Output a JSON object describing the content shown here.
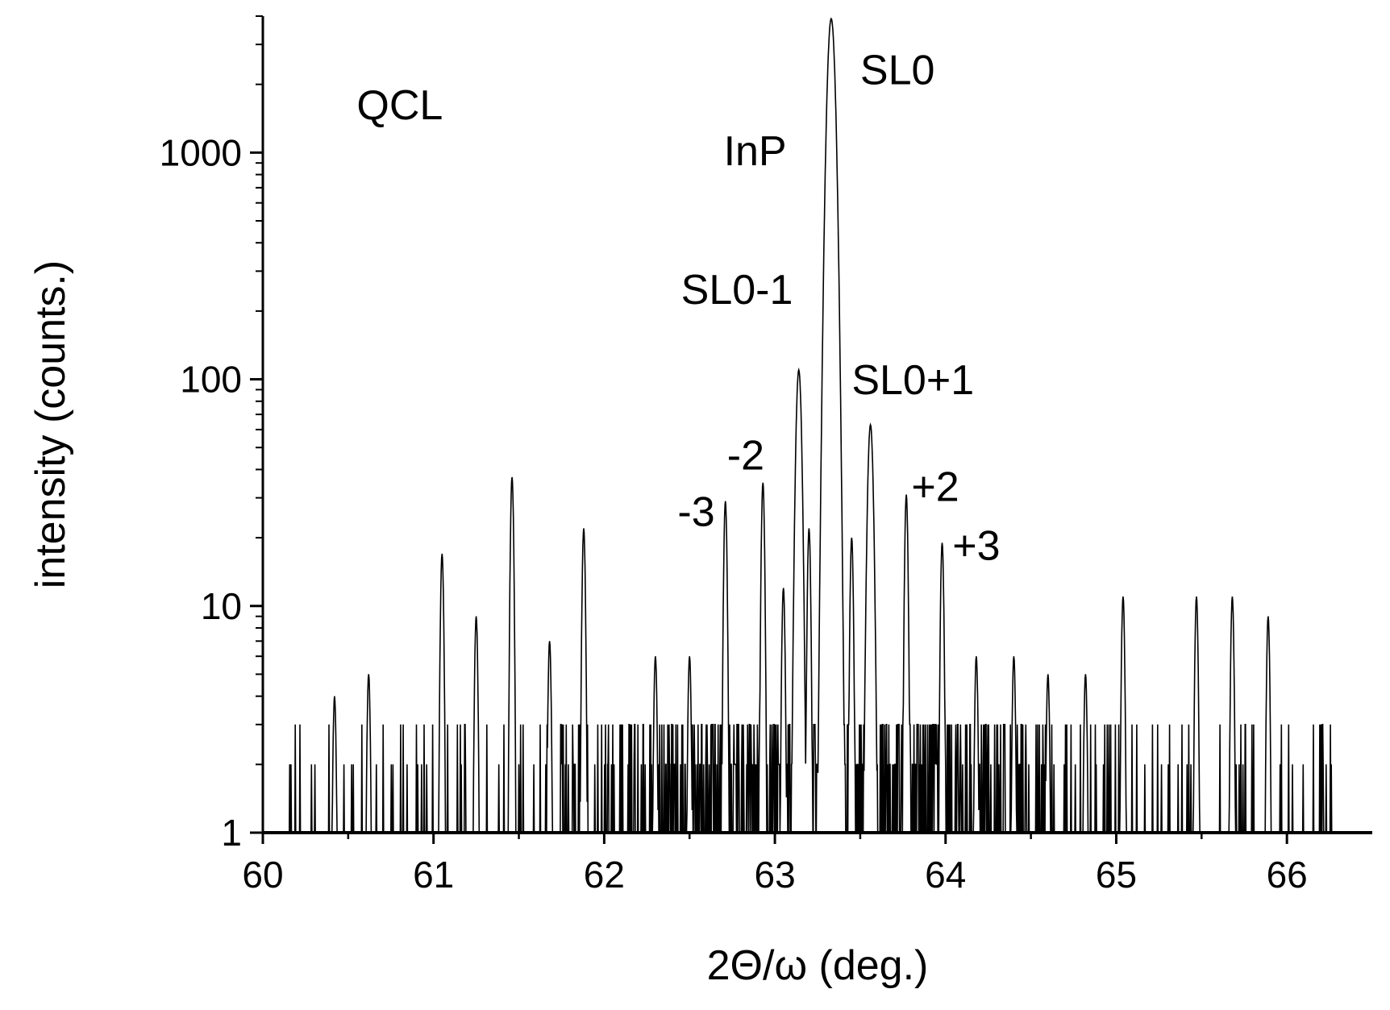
{
  "chart_data": {
    "type": "line",
    "title": "",
    "xlabel": "2Θ/ω  (deg.)",
    "ylabel": "intensity  (counts.)",
    "xlim": [
      60,
      66.5
    ],
    "ylim": [
      1,
      4000
    ],
    "yscale": "log",
    "grid": false,
    "legend": "none",
    "x_major_ticks": [
      60,
      61,
      62,
      63,
      64,
      65,
      66
    ],
    "x_tick_labels": [
      "60",
      "61",
      "62",
      "63",
      "64",
      "65",
      "66"
    ],
    "y_major_ticks": [
      1,
      10,
      100,
      1000
    ],
    "y_tick_labels": [
      "1",
      "10",
      "100",
      "1000"
    ],
    "series": [
      {
        "name": "QCL",
        "color": "#000000",
        "background_level": 1,
        "noise_max": 3,
        "peaks": [
          {
            "x": 60.42,
            "y": 4
          },
          {
            "x": 60.62,
            "y": 5
          },
          {
            "x": 61.05,
            "y": 17
          },
          {
            "x": 61.25,
            "y": 9
          },
          {
            "x": 61.46,
            "y": 37
          },
          {
            "x": 61.68,
            "y": 7
          },
          {
            "x": 61.88,
            "y": 22
          },
          {
            "x": 62.3,
            "y": 6
          },
          {
            "x": 62.5,
            "y": 6
          },
          {
            "x": 62.71,
            "y": 29
          },
          {
            "x": 62.93,
            "y": 35
          },
          {
            "x": 63.05,
            "y": 12
          },
          {
            "x": 63.14,
            "y": 110
          },
          {
            "x": 63.2,
            "y": 22
          },
          {
            "x": 63.33,
            "y": 3900
          },
          {
            "x": 63.45,
            "y": 20
          },
          {
            "x": 63.56,
            "y": 63
          },
          {
            "x": 63.77,
            "y": 31
          },
          {
            "x": 63.98,
            "y": 19
          },
          {
            "x": 64.18,
            "y": 6
          },
          {
            "x": 64.4,
            "y": 6
          },
          {
            "x": 64.6,
            "y": 5
          },
          {
            "x": 64.82,
            "y": 5
          },
          {
            "x": 65.04,
            "y": 11
          },
          {
            "x": 65.47,
            "y": 11
          },
          {
            "x": 65.68,
            "y": 11
          },
          {
            "x": 65.89,
            "y": 9
          }
        ]
      }
    ],
    "annotations": [
      {
        "text": "QCL",
        "x": 60.55,
        "y": 1400
      },
      {
        "text": "InP",
        "x": 62.7,
        "y": 880
      },
      {
        "text": "SL0",
        "x": 63.5,
        "y": 2000
      },
      {
        "text": "SL0-1",
        "x": 62.45,
        "y": 215
      },
      {
        "text": "SL0+1",
        "x": 63.45,
        "y": 86
      },
      {
        "text": "-2",
        "x": 62.72,
        "y": 40
      },
      {
        "text": "+2",
        "x": 63.8,
        "y": 29
      },
      {
        "text": "-3",
        "x": 62.43,
        "y": 22.5
      },
      {
        "text": "+3",
        "x": 64.04,
        "y": 16
      }
    ]
  }
}
